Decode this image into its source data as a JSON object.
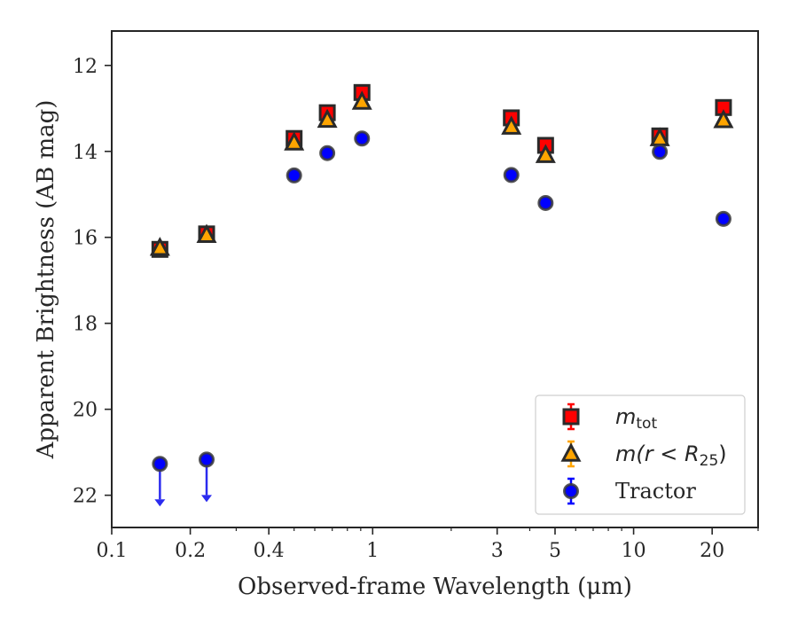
{
  "chart_data": {
    "type": "scatter",
    "xlabel": "Observed-frame Wavelength (μm)",
    "ylabel": "Apparent Brightness (AB mag)",
    "xscale": "log",
    "xlim": [
      0.1,
      30
    ],
    "ylim": [
      22.75,
      11.2
    ],
    "y_inverted": true,
    "grid": false,
    "legend_position": "bottom-right",
    "x_ticks": [
      {
        "value": 0.1,
        "label": "0.1"
      },
      {
        "value": 0.2,
        "label": "0.2"
      },
      {
        "value": 0.4,
        "label": "0.4"
      },
      {
        "value": 1,
        "label": "1"
      },
      {
        "value": 3,
        "label": "3"
      },
      {
        "value": 5,
        "label": "5"
      },
      {
        "value": 10,
        "label": "10"
      },
      {
        "value": 20,
        "label": "20"
      }
    ],
    "y_ticks": [
      12,
      14,
      16,
      18,
      20,
      22
    ],
    "series": [
      {
        "name": "m_tot",
        "legend_label": {
          "base": "m",
          "sub": "tot"
        },
        "marker": "square",
        "color": "#ff0000",
        "edge_color": "#2a2a2a",
        "x": [
          0.153,
          0.231,
          0.5,
          0.67,
          0.91,
          3.4,
          4.6,
          12.6,
          22.1
        ],
        "y": [
          16.28,
          15.92,
          13.7,
          13.1,
          12.63,
          13.22,
          13.86,
          13.64,
          12.98
        ]
      },
      {
        "name": "m(r < R25)",
        "legend_label": {
          "base": "m(r < R",
          "sub": "25",
          "close": ")"
        },
        "marker": "triangle",
        "color": "#ffa500",
        "edge_color": "#2a2a2a",
        "x": [
          0.153,
          0.231,
          0.5,
          0.67,
          0.91,
          3.4,
          4.6,
          12.6,
          22.1
        ],
        "y": [
          16.25,
          15.95,
          13.8,
          13.27,
          12.85,
          13.43,
          14.09,
          13.7,
          13.28
        ]
      },
      {
        "name": "Tractor",
        "legend_label": {
          "base": "Tractor"
        },
        "marker": "circle",
        "color": "#0000ff",
        "edge_color": "#3a3a3a",
        "x": [
          0.153,
          0.231,
          0.5,
          0.67,
          0.91,
          3.4,
          4.6,
          12.6,
          22.1
        ],
        "y": [
          21.27,
          21.17,
          14.56,
          14.04,
          13.7,
          14.55,
          15.2,
          14.01,
          15.57
        ],
        "upper_limits": [
          true,
          true,
          false,
          false,
          false,
          false,
          false,
          false,
          false
        ],
        "limit_color": "#2b2bef"
      }
    ]
  }
}
